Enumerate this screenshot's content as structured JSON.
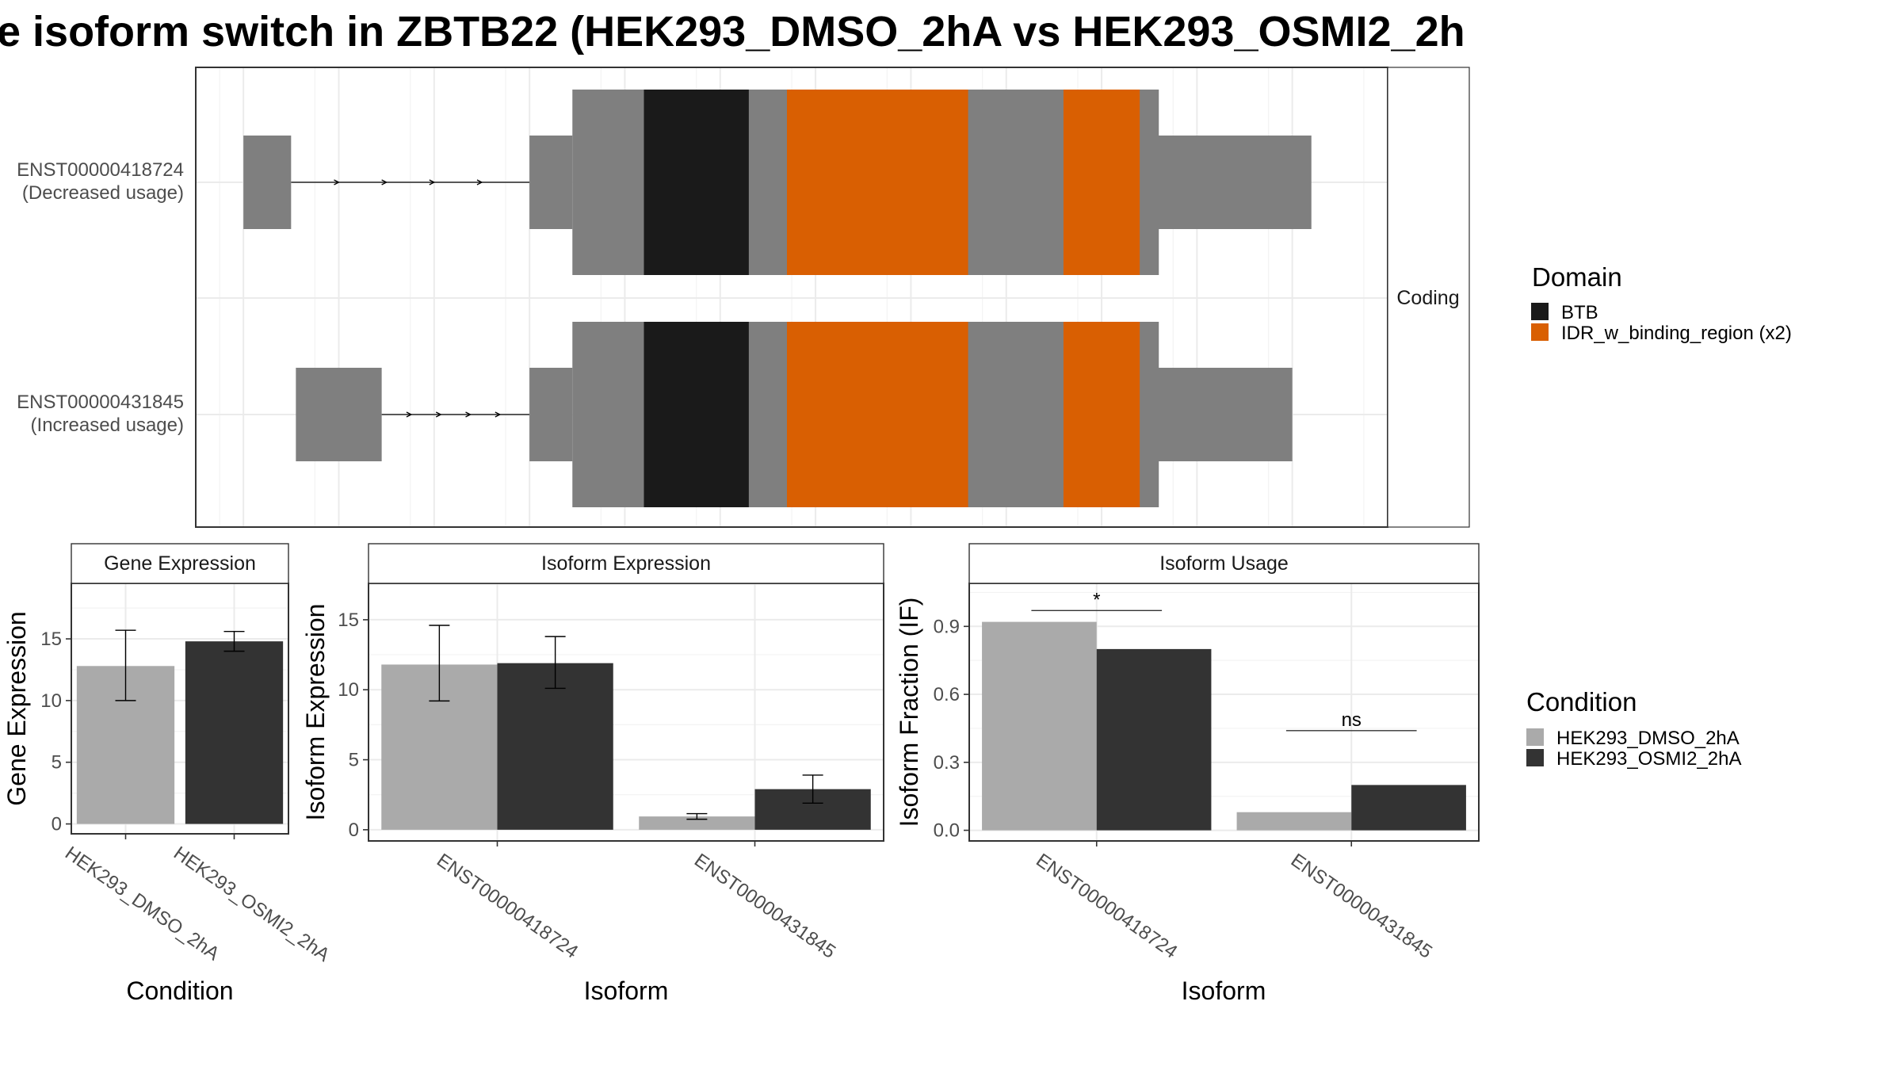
{
  "title": "e isoform switch in ZBTB22 (HEK293_DMSO_2hA vs HEK293_OSMI2_2h",
  "colors": {
    "exon": "#7f7f7f",
    "btb": "#1a1a1a",
    "idr": "#d95f02",
    "dmso": "#aaaaaa",
    "osmi2": "#333333"
  },
  "structure": {
    "facet_label": "Coding",
    "isoforms": [
      {
        "id": "ENST00000418724",
        "usage_label": "(Decreased usage)",
        "utr_start": [
          0.0,
          0.05
        ],
        "cds": [
          0.3,
          0.96
        ],
        "utr_end": [
          0.96,
          1.12
        ],
        "intron": [
          0.05,
          0.3
        ],
        "domains": [
          {
            "name": "BTB",
            "range": [
              0.42,
              0.53
            ]
          },
          {
            "name": "IDR_w_binding_region",
            "range": [
              0.57,
              0.76
            ]
          },
          {
            "name": "IDR_w_binding_region",
            "range": [
              0.86,
              0.94
            ]
          }
        ]
      },
      {
        "id": "ENST00000431845",
        "usage_label": "(Increased usage)",
        "utr_start": [
          0.055,
          0.145
        ],
        "cds": [
          0.3,
          0.96
        ],
        "utr_end": [
          0.96,
          1.1
        ],
        "intron": [
          0.145,
          0.3
        ],
        "domains": [
          {
            "name": "BTB",
            "range": [
              0.42,
              0.53
            ]
          },
          {
            "name": "IDR_w_binding_region",
            "range": [
              0.57,
              0.76
            ]
          },
          {
            "name": "IDR_w_binding_region",
            "range": [
              0.86,
              0.94
            ]
          }
        ]
      }
    ]
  },
  "legends": {
    "domain": {
      "title": "Domain",
      "items": [
        {
          "label": "BTB",
          "color": "#1a1a1a"
        },
        {
          "label": "IDR_w_binding_region (x2)",
          "color": "#d95f02"
        }
      ]
    },
    "condition": {
      "title": "Condition",
      "items": [
        {
          "label": "HEK293_DMSO_2hA",
          "color": "#aaaaaa"
        },
        {
          "label": "HEK293_OSMI2_2hA",
          "color": "#333333"
        }
      ]
    }
  },
  "chart_data": [
    {
      "type": "bar",
      "title": "Gene Expression",
      "xlabel": "Condition",
      "ylabel": "Gene Expression",
      "categories": [
        "HEK293_DMSO_2hA",
        "HEK293_OSMI2_2hA"
      ],
      "values": [
        12.8,
        14.8
      ],
      "errors": [
        [
          10.0,
          15.7
        ],
        [
          14.0,
          15.6
        ]
      ],
      "ylim": [
        -0.8,
        19.5
      ],
      "yticks": [
        0,
        5,
        10,
        15
      ],
      "ytick_labels": [
        "0",
        "5",
        "10",
        "15"
      ],
      "colors": [
        "#aaaaaa",
        "#333333"
      ]
    },
    {
      "type": "bar",
      "title": "Isoform Expression",
      "xlabel": "Isoform",
      "ylabel": "Isoform Expression",
      "categories": [
        "ENST00000418724",
        "ENST00000431845"
      ],
      "series": [
        {
          "name": "HEK293_DMSO_2hA",
          "values": [
            11.8,
            0.95
          ],
          "errors": [
            [
              9.2,
              14.6
            ],
            [
              0.75,
              1.15
            ]
          ]
        },
        {
          "name": "HEK293_OSMI2_2hA",
          "values": [
            11.9,
            2.9
          ],
          "errors": [
            [
              10.1,
              13.8
            ],
            [
              1.9,
              3.9
            ]
          ]
        }
      ],
      "ylim": [
        -0.8,
        17.6
      ],
      "yticks": [
        0,
        5,
        10,
        15
      ],
      "ytick_labels": [
        "0",
        "5",
        "10",
        "15"
      ]
    },
    {
      "type": "bar",
      "title": "Isoform Usage",
      "xlabel": "Isoform",
      "ylabel": "Isoform Fraction (IF)",
      "categories": [
        "ENST00000418724",
        "ENST00000431845"
      ],
      "series": [
        {
          "name": "HEK293_DMSO_2hA",
          "values": [
            0.92,
            0.08
          ]
        },
        {
          "name": "HEK293_OSMI2_2hA",
          "values": [
            0.8,
            0.2
          ]
        }
      ],
      "significance": [
        "*",
        "ns"
      ],
      "ylim": [
        -0.047,
        1.09
      ],
      "yticks": [
        0.0,
        0.3,
        0.6,
        0.9
      ],
      "ytick_labels": [
        "0.0",
        "0.3",
        "0.6",
        "0.9"
      ]
    }
  ]
}
